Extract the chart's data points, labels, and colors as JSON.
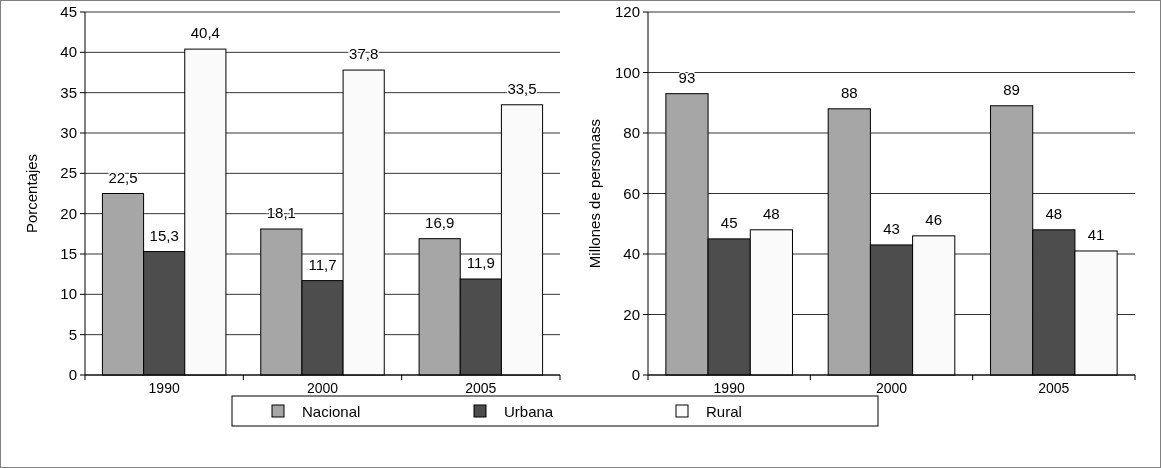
{
  "chart_data": [
    {
      "type": "bar",
      "ylabel": "Porcentajes",
      "categories": [
        "1990",
        "2000",
        "2005"
      ],
      "ylim": [
        0,
        45
      ],
      "yticks": [
        0,
        5,
        10,
        15,
        20,
        25,
        30,
        35,
        40,
        45
      ],
      "grid": "y",
      "legend": "bottom",
      "series": [
        {
          "name": "Nacional",
          "color": "#a6a6a6",
          "values": [
            22.5,
            18.1,
            16.9
          ],
          "value_labels": [
            "22,5",
            "18,1",
            "16,9"
          ]
        },
        {
          "name": "Urbana",
          "color": "#4d4d4d",
          "values": [
            15.3,
            11.7,
            11.9
          ],
          "value_labels": [
            "15,3",
            "11,7",
            "11,9"
          ]
        },
        {
          "name": "Rural",
          "color": "#fafafa",
          "values": [
            40.4,
            37.8,
            33.5
          ],
          "value_labels": [
            "40,4",
            "37,8",
            "33,5"
          ]
        }
      ]
    },
    {
      "type": "bar",
      "ylabel": "Millones de personass",
      "categories": [
        "1990",
        "2000",
        "2005"
      ],
      "ylim": [
        0,
        120
      ],
      "yticks": [
        0,
        20,
        40,
        60,
        80,
        100,
        120
      ],
      "grid": "y",
      "data_labels": true,
      "series": [
        {
          "color": "#a6a6a6",
          "values": [
            93,
            88,
            89
          ]
        },
        {
          "color": "#4d4d4d",
          "values": [
            45,
            43,
            48
          ]
        },
        {
          "color": "#fafafa",
          "values": [
            48,
            46,
            41
          ]
        }
      ]
    }
  ]
}
